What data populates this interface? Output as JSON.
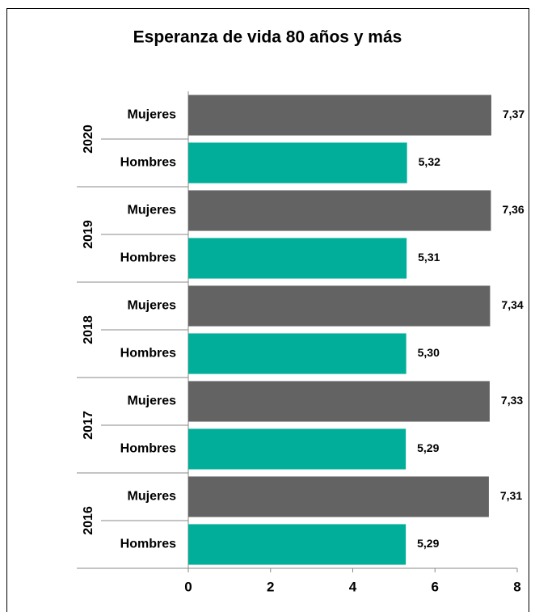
{
  "chart_data": {
    "type": "bar",
    "orientation": "horizontal",
    "title": "Esperanza de vida 80 años y más",
    "categories": [
      "2020",
      "2019",
      "2018",
      "2017",
      "2016"
    ],
    "series": [
      {
        "name": "Mujeres",
        "color": "#636363",
        "values": [
          7.37,
          7.36,
          7.34,
          7.33,
          7.31
        ],
        "value_labels": [
          "7,37",
          "7,36",
          "7,34",
          "7,33",
          "7,31"
        ]
      },
      {
        "name": "Hombres",
        "color": "#00ae9a",
        "values": [
          5.32,
          5.31,
          5.3,
          5.29,
          5.29
        ],
        "value_labels": [
          "5,32",
          "5,31",
          "5,30",
          "5,29",
          "5,29"
        ]
      }
    ],
    "xlim": [
      0,
      8
    ],
    "xticks": [
      0,
      2,
      4,
      6,
      8
    ],
    "grid": false
  }
}
